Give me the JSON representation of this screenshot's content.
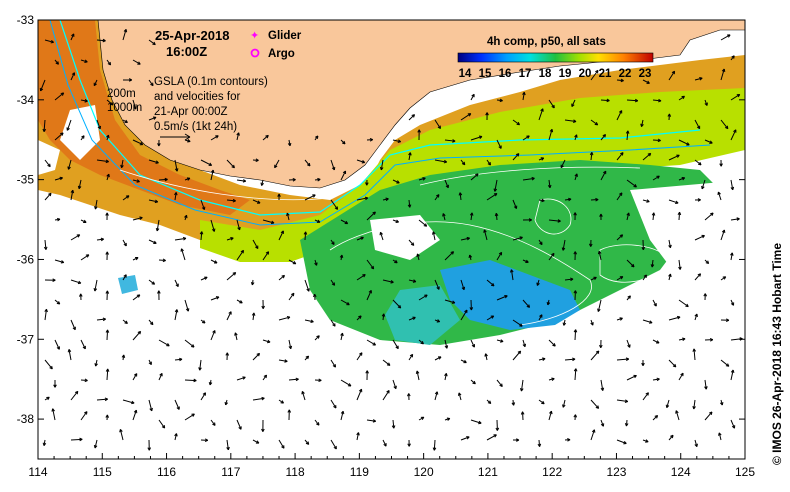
{
  "map": {
    "date": "25-Apr-2018",
    "time": "16:00Z",
    "legend_glider": "Glider",
    "legend_argo": "Argo",
    "colorbar_title": "4h comp, p50, all sats",
    "colorbar_ticks": [
      "14",
      "15",
      "16",
      "17",
      "18",
      "19",
      "20",
      "21",
      "22",
      "23"
    ],
    "colors": {
      "land": "#f9c79b",
      "glider": "#ff00ff",
      "argo": "#ff00ff",
      "contour": "#ffffff",
      "shelf_200": "#00ffff",
      "arrow": "#000000"
    },
    "gsla_lines": [
      "GSLA (0.1m contours)",
      "and velocities for",
      "21-Apr 00:00Z",
      "0.5m/s (1kt 24h)"
    ],
    "depth_labels": [
      "200m",
      "1000m"
    ],
    "credit": "© IMOS 26-Apr-2018 16:43 Hobart Time",
    "lon_ticks": [
      "114",
      "115",
      "116",
      "117",
      "118",
      "119",
      "120",
      "121",
      "122",
      "123",
      "124",
      "125"
    ],
    "lat_ticks": [
      "-33",
      "-34",
      "-35",
      "-36",
      "-37",
      "-38"
    ]
  }
}
